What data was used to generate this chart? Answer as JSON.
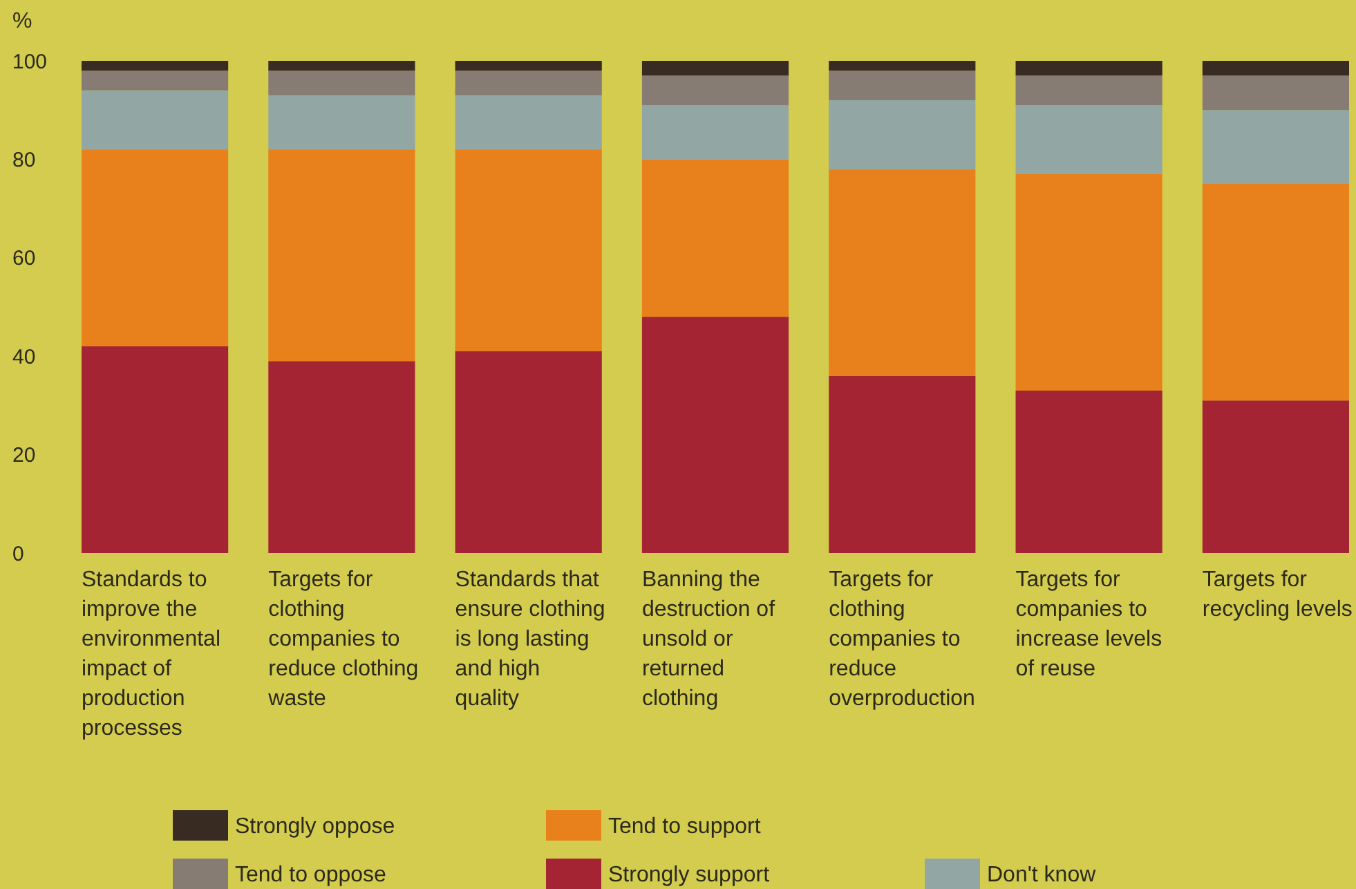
{
  "chart_data": {
    "type": "bar",
    "stacked": true,
    "ylabel": "%",
    "categories": [
      "Standards to improve the environmental impact of production processes",
      "Targets for clothing companies to reduce clothing waste",
      "Standards that ensure clothing is long lasting and high quality",
      "Banning the destruction of unsold or returned clothing",
      "Targets for clothing companies to reduce overproduction",
      "Targets for companies to increase levels of reuse",
      "Targets for recycling levels"
    ],
    "series": [
      {
        "name": "Strongly support",
        "color": "#a42434",
        "values": [
          42,
          39,
          41,
          48,
          36,
          33,
          31
        ]
      },
      {
        "name": "Tend to support",
        "color": "#e8811b",
        "values": [
          40,
          43,
          41,
          32,
          42,
          44,
          44
        ]
      },
      {
        "name": "Don't know",
        "color": "#92a6a4",
        "values": [
          12,
          11,
          11,
          11,
          14,
          14,
          15
        ]
      },
      {
        "name": "Tend to oppose",
        "color": "#877c73",
        "values": [
          4,
          5,
          5,
          6,
          6,
          6,
          7
        ]
      },
      {
        "name": "Strongly oppose",
        "color": "#372b22",
        "values": [
          2,
          2,
          2,
          3,
          2,
          3,
          3
        ]
      }
    ],
    "ylim": [
      0,
      100
    ],
    "yticks": [
      0,
      20,
      40,
      60,
      80,
      100
    ],
    "grid": false,
    "legend": "bottom"
  }
}
